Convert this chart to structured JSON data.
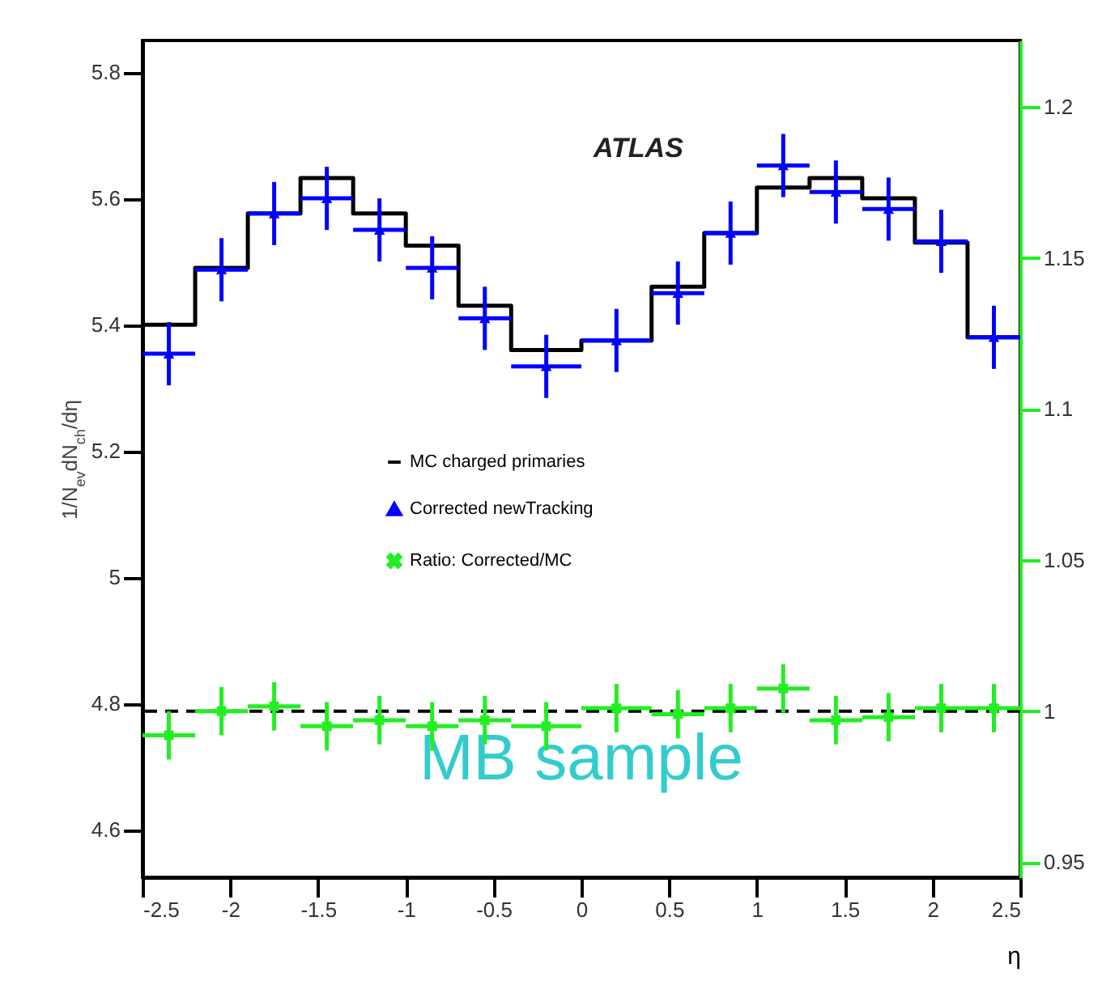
{
  "chart_data": {
    "type": "scatter",
    "xlabel": "η",
    "ylabel": "1/N$_{ev}$dN$_{ch}$/dη",
    "annotations": [
      "ATLAS",
      "MB sample"
    ],
    "xlim": [
      -2.5,
      2.5
    ],
    "xticks": [
      -2.5,
      -2,
      -1.5,
      -1,
      -0.5,
      0,
      0.5,
      1,
      1.5,
      2,
      2.5
    ],
    "ylim": [
      4.525,
      5.85
    ],
    "yticks": [
      4.6,
      4.8,
      5,
      5.2,
      5.4,
      5.6,
      5.8
    ],
    "y2lim": [
      0.945,
      1.222
    ],
    "y2ticks": [
      0.95,
      1,
      1.05,
      1.1,
      1.15,
      1.2
    ],
    "legend": "left",
    "grid": false,
    "series": [
      {
        "name": "MC charged primaries",
        "type": "step",
        "color": "#000000",
        "x": [
          -2.5,
          -2.2,
          -1.9,
          -1.6,
          -1.3,
          -1.0,
          -0.7,
          -0.4,
          0,
          0.4,
          0.7,
          1.0,
          1.3,
          1.6,
          1.9,
          2.2,
          2.5
        ],
        "values": [
          5.4,
          5.49,
          5.576,
          5.632,
          5.576,
          5.525,
          5.43,
          5.36,
          5.375,
          5.46,
          5.545,
          5.617,
          5.632,
          5.6,
          5.53,
          5.38,
          5.38
        ]
      },
      {
        "name": "Corrected newTracking",
        "marker": "triangle",
        "color": "#0000ff",
        "x": [
          -2.35,
          -2.05,
          -1.75,
          -1.45,
          -1.15,
          -0.85,
          -0.55,
          -0.2,
          0.2,
          0.55,
          0.85,
          1.15,
          1.45,
          1.75,
          2.05,
          2.35
        ],
        "values": [
          5.354,
          5.487,
          5.576,
          5.6,
          5.55,
          5.49,
          5.41,
          5.334,
          5.375,
          5.45,
          5.545,
          5.652,
          5.61,
          5.583,
          5.532,
          5.38
        ],
        "errors": [
          0.05,
          0.05,
          0.05,
          0.05,
          0.05,
          0.05,
          0.05,
          0.05,
          0.05,
          0.05,
          0.05,
          0.05,
          0.05,
          0.05,
          0.05,
          0.05
        ],
        "xerrors": [
          0.15,
          0.15,
          0.15,
          0.15,
          0.15,
          0.15,
          0.15,
          0.2,
          0.2,
          0.15,
          0.15,
          0.15,
          0.15,
          0.15,
          0.15,
          0.15
        ]
      },
      {
        "name": "Ratio: Corrected/MC",
        "marker": "cross",
        "axis": "y2",
        "color": "#22ee22",
        "x": [
          -2.35,
          -2.05,
          -1.75,
          -1.45,
          -1.15,
          -0.85,
          -0.55,
          -0.2,
          0.2,
          0.55,
          0.85,
          1.15,
          1.45,
          1.75,
          2.05,
          2.35
        ],
        "values": [
          0.992,
          1.0,
          1.0016,
          0.995,
          0.997,
          0.995,
          0.997,
          0.995,
          1.001,
          0.999,
          1.001,
          1.0075,
          0.997,
          0.998,
          1.001,
          1.001
        ],
        "errors": [
          0.008,
          0.008,
          0.008,
          0.008,
          0.008,
          0.008,
          0.008,
          0.008,
          0.008,
          0.008,
          0.008,
          0.008,
          0.008,
          0.008,
          0.008,
          0.008
        ],
        "xerrors": [
          0.15,
          0.15,
          0.15,
          0.15,
          0.15,
          0.15,
          0.15,
          0.2,
          0.2,
          0.15,
          0.15,
          0.15,
          0.15,
          0.15,
          0.15,
          0.15
        ]
      }
    ],
    "ref_lines": [
      {
        "axis": "y2",
        "value": 1,
        "color": "#000000",
        "line_style": "dashed"
      }
    ]
  }
}
